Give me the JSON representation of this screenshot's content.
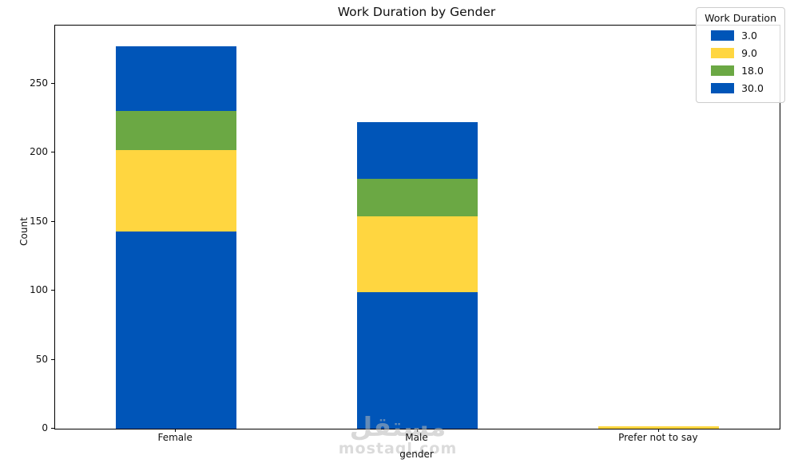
{
  "title": "Work Duration by Gender",
  "axes": {
    "xlabel": "gender",
    "ylabel": "Count",
    "yticks": [
      0,
      50,
      100,
      150,
      200,
      250
    ],
    "ylim": [
      0,
      292
    ]
  },
  "legend": {
    "title": "Work Duration",
    "position": "upper right",
    "entries": [
      {
        "label": "3.0",
        "color": "#0055B8"
      },
      {
        "label": "9.0",
        "color": "#FFD640"
      },
      {
        "label": "18.0",
        "color": "#6BA844"
      },
      {
        "label": "30.0",
        "color": "#0055B8"
      }
    ]
  },
  "chart_data": {
    "type": "bar",
    "stacked": true,
    "title": "Work Duration by Gender",
    "xlabel": "gender",
    "ylabel": "Count",
    "ylim": [
      0,
      292
    ],
    "grid": false,
    "categories": [
      "Female",
      "Male",
      "Prefer not to say"
    ],
    "series": [
      {
        "name": "3.0",
        "color": "#0055B8",
        "values": [
          143,
          99,
          0
        ]
      },
      {
        "name": "9.0",
        "color": "#FFD640",
        "values": [
          59,
          55,
          2
        ]
      },
      {
        "name": "18.0",
        "color": "#6BA844",
        "values": [
          28,
          27,
          0
        ]
      },
      {
        "name": "30.0",
        "color": "#0055B8",
        "values": [
          47,
          41,
          0
        ]
      }
    ],
    "totals": [
      277,
      222,
      2
    ]
  },
  "watermark": {
    "logo": "مستقل",
    "domain": "mostaql.com"
  }
}
